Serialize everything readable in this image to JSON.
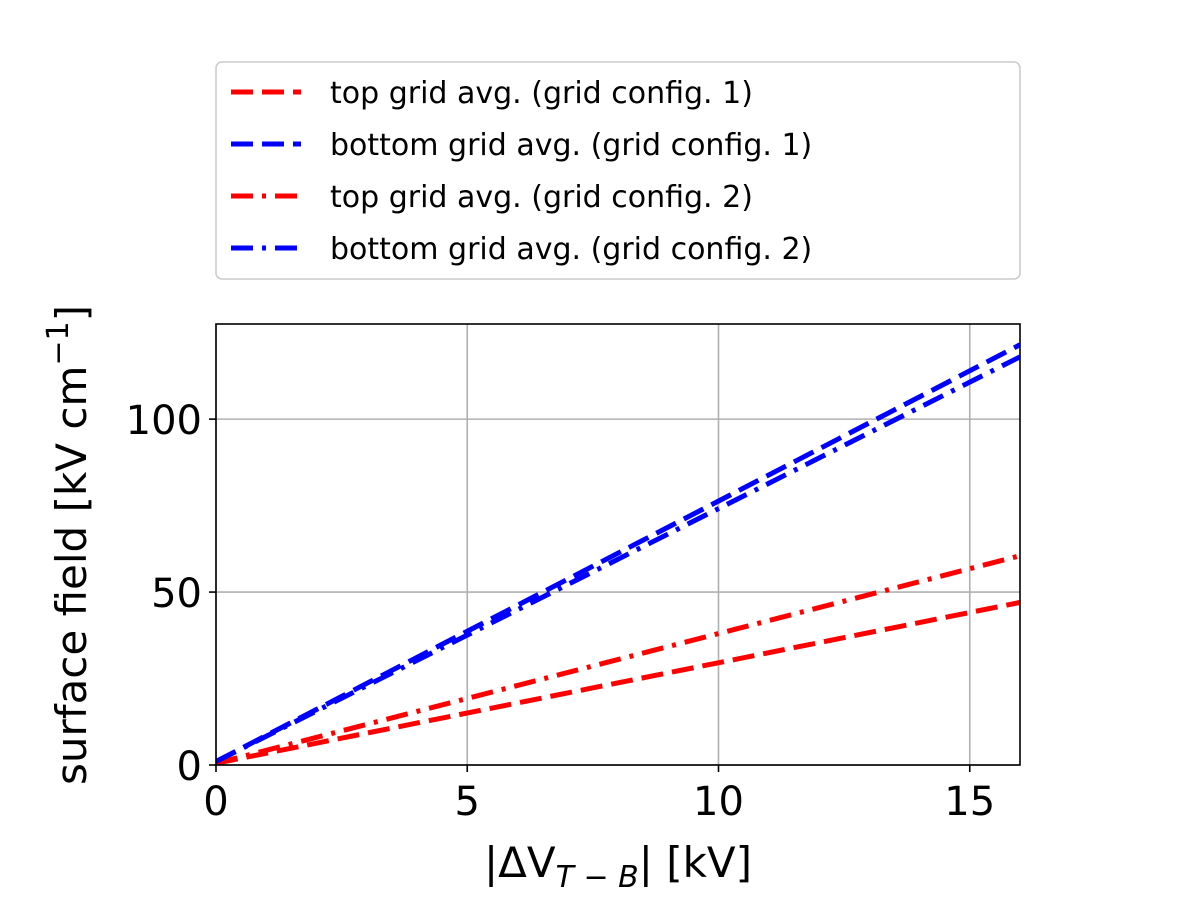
{
  "chart_data": {
    "type": "line",
    "xlabel": {
      "prefix": "|ΔV",
      "sub": "T − B",
      "suffix": "| [kV]"
    },
    "ylabel": {
      "main": "surface field [kV cm",
      "sup": "−1",
      "suffix": "]"
    },
    "xlim": [
      0,
      16
    ],
    "ylim": [
      0,
      127.5
    ],
    "xticks": [
      0,
      5,
      10,
      15
    ],
    "yticks": [
      0,
      50,
      100
    ],
    "grid": true,
    "legend_position": "above plot",
    "series": [
      {
        "name": "top grid avg. (grid config. 1)",
        "color": "#ff0000",
        "style": "dashed",
        "x": [
          0,
          16
        ],
        "y": [
          0.5,
          47
        ]
      },
      {
        "name": "bottom grid avg. (grid config. 1)",
        "color": "#0000ff",
        "style": "dashed",
        "x": [
          0,
          16
        ],
        "y": [
          1,
          121.5
        ]
      },
      {
        "name": "top grid avg. (grid config. 2)",
        "color": "#ff0000",
        "style": "dashdot",
        "x": [
          0,
          16
        ],
        "y": [
          0.5,
          60.5
        ]
      },
      {
        "name": "bottom grid avg. (grid config. 2)",
        "color": "#0000ff",
        "style": "dashdot",
        "x": [
          0,
          16
        ],
        "y": [
          1,
          118
        ]
      }
    ]
  }
}
